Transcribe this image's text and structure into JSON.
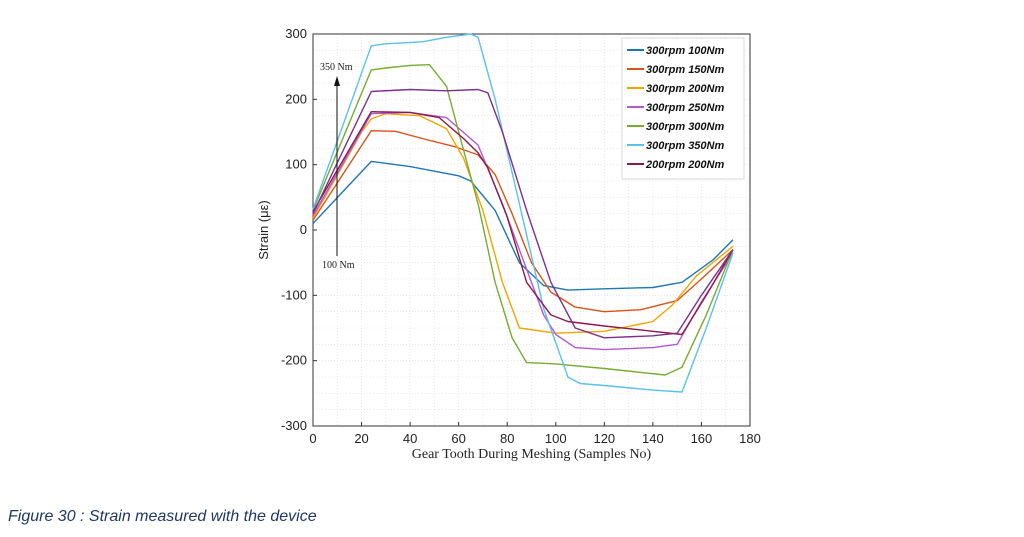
{
  "caption": "Figure 30 : Strain measured with the device",
  "chart_data": {
    "type": "line",
    "title": "",
    "xlabel": "Gear Tooth During Meshing (Samples No)",
    "ylabel": "Strain (με)",
    "xlim": [
      0,
      180
    ],
    "ylim": [
      -300,
      300
    ],
    "xticks": [
      0,
      20,
      40,
      60,
      80,
      100,
      120,
      140,
      160,
      180
    ],
    "yticks": [
      300,
      200,
      100,
      0,
      -100,
      -200,
      -300
    ],
    "grid": true,
    "legend_position": "top-right",
    "annotations": {
      "top": "350 Nm",
      "bottom": "100 Nm"
    },
    "series": [
      {
        "name": "300rpm 100Nm",
        "color": "#1f77b4",
        "x": [
          0,
          24,
          40,
          50,
          60,
          65,
          75,
          85,
          95,
          105,
          120,
          140,
          152,
          165,
          173
        ],
        "y": [
          10,
          105,
          97,
          90,
          83,
          75,
          30,
          -50,
          -85,
          -92,
          -90,
          -88,
          -80,
          -45,
          -15
        ]
      },
      {
        "name": "300rpm 150Nm",
        "color": "#d95319",
        "x": [
          0,
          24,
          34,
          45,
          58,
          68,
          75,
          82,
          90,
          98,
          108,
          120,
          135,
          150,
          160,
          173
        ],
        "y": [
          15,
          152,
          151,
          140,
          128,
          115,
          85,
          25,
          -50,
          -95,
          -118,
          -125,
          -122,
          -108,
          -75,
          -30
        ]
      },
      {
        "name": "300rpm 200Nm",
        "color": "#f0a500",
        "x": [
          0,
          20,
          24,
          30,
          44,
          55,
          62,
          70,
          78,
          85,
          100,
          120,
          140,
          148,
          158,
          173
        ],
        "y": [
          18,
          150,
          170,
          178,
          175,
          155,
          110,
          30,
          -80,
          -150,
          -158,
          -155,
          -140,
          -115,
          -70,
          -25
        ]
      },
      {
        "name": "300rpm 250Nm",
        "color": "#b05ad6",
        "x": [
          0,
          24,
          40,
          55,
          68,
          78,
          88,
          95,
          100,
          108,
          120,
          140,
          150,
          160,
          173
        ],
        "y": [
          22,
          178,
          180,
          172,
          130,
          40,
          -60,
          -130,
          -160,
          -180,
          -183,
          -180,
          -175,
          -110,
          -35
        ]
      },
      {
        "name": "300rpm 300Nm",
        "color": "#77ac30",
        "x": [
          0,
          24,
          30,
          40,
          48,
          55,
          60,
          68,
          75,
          82,
          88,
          100,
          120,
          135,
          145,
          152,
          162,
          173
        ],
        "y": [
          30,
          245,
          248,
          252,
          253,
          220,
          150,
          40,
          -80,
          -165,
          -203,
          -205,
          -212,
          -218,
          -222,
          -210,
          -130,
          -30
        ]
      },
      {
        "name": "300rpm 350Nm",
        "color": "#5bc0eb",
        "x": [
          0,
          24,
          30,
          45,
          55,
          65,
          68,
          75,
          85,
          95,
          105,
          110,
          120,
          140,
          152,
          162,
          173
        ],
        "y": [
          32,
          282,
          285,
          288,
          295,
          300,
          295,
          200,
          40,
          -120,
          -225,
          -235,
          -238,
          -245,
          -248,
          -150,
          -35
        ]
      },
      {
        "name": "200rpm 200Nm",
        "color": "#8b1a4a",
        "x": [
          0,
          24,
          40,
          52,
          62,
          68,
          72,
          80,
          88,
          98,
          105,
          120,
          140,
          152,
          162,
          173
        ],
        "y": [
          28,
          181,
          180,
          172,
          140,
          118,
          95,
          20,
          -80,
          -130,
          -140,
          -147,
          -155,
          -160,
          -100,
          -30
        ]
      },
      {
        "name": "",
        "color": "#7e2f8e",
        "x": [
          0,
          24,
          40,
          55,
          68,
          72,
          78,
          88,
          98,
          108,
          120,
          140,
          150,
          160,
          173
        ],
        "y": [
          25,
          212,
          215,
          213,
          215,
          210,
          150,
          30,
          -80,
          -150,
          -165,
          -162,
          -158,
          -100,
          -30
        ]
      }
    ]
  }
}
